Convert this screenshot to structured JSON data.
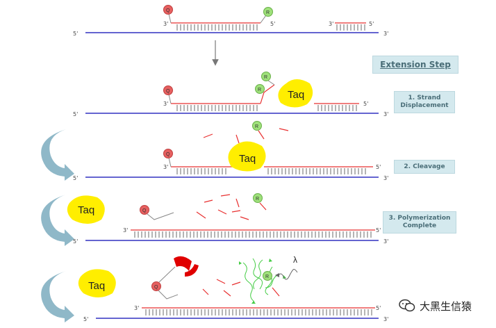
{
  "heading": "Extension Step",
  "steps": [
    {
      "label": "1. Strand Displacement"
    },
    {
      "label": "2. Cleavage"
    },
    {
      "label": "3. Polymerization Complete"
    }
  ],
  "labels": {
    "five_prime": "5'",
    "three_prime": "3'",
    "taq": "Taq",
    "reporter": "R",
    "quencher": "Q",
    "lambda": "λ"
  },
  "watermark": "大黑生信猿",
  "colors": {
    "template_strand": "#3030c0",
    "new_strand": "#e83030",
    "reporter": "#9ee07a",
    "quencher": "#e66060",
    "taq": "#ffee00",
    "arrow": "#8fb8c8",
    "step_box": "#d4e9ee"
  }
}
